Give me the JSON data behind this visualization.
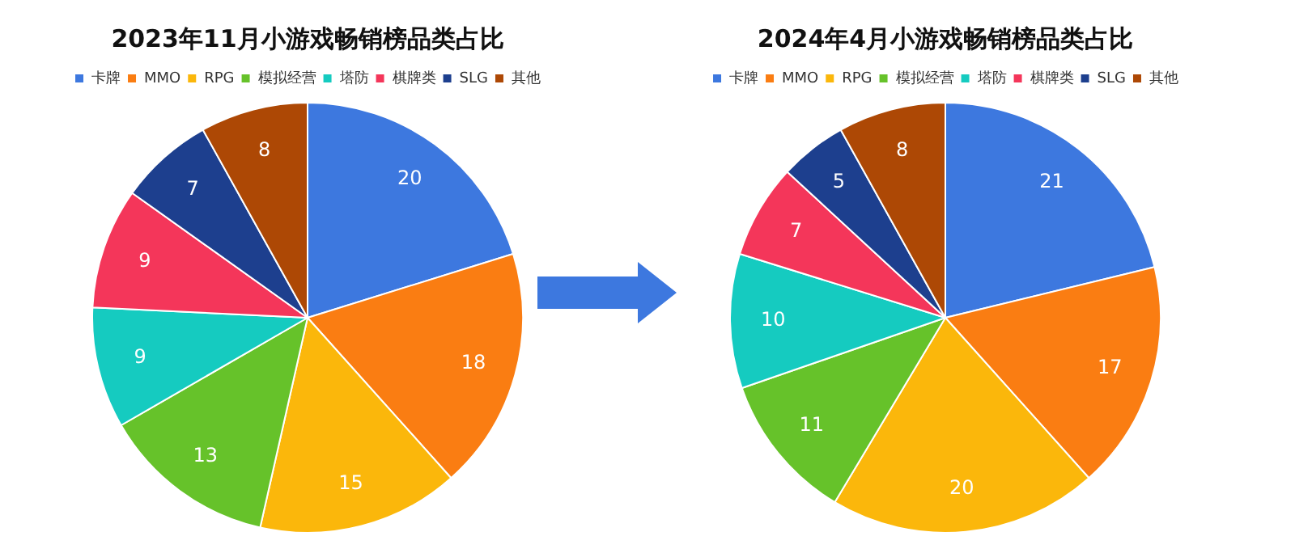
{
  "chart_data": [
    {
      "type": "pie",
      "title": "2023年11月小游戏畅销榜品类占比",
      "categories": [
        "卡牌",
        "MMO",
        "RPG",
        "模拟经营",
        "塔防",
        "棋牌类",
        "SLG",
        "其他"
      ],
      "values": [
        20,
        18,
        15,
        13,
        9,
        9,
        7,
        8
      ],
      "colors": [
        "#3d78df",
        "#fa7d12",
        "#fbb70b",
        "#66c22a",
        "#15cbc0",
        "#f4365a",
        "#1d3f8e",
        "#ad4805"
      ],
      "legend": "top",
      "data_labels": true
    },
    {
      "type": "pie",
      "title": "2024年4月小游戏畅销榜品类占比",
      "categories": [
        "卡牌",
        "MMO",
        "RPG",
        "模拟经营",
        "塔防",
        "棋牌类",
        "SLG",
        "其他"
      ],
      "values": [
        21,
        17,
        20,
        11,
        10,
        7,
        5,
        8
      ],
      "colors": [
        "#3d78df",
        "#fa7d12",
        "#fbb70b",
        "#66c22a",
        "#15cbc0",
        "#f4365a",
        "#1d3f8e",
        "#ad4805"
      ],
      "legend": "top",
      "data_labels": true
    }
  ]
}
